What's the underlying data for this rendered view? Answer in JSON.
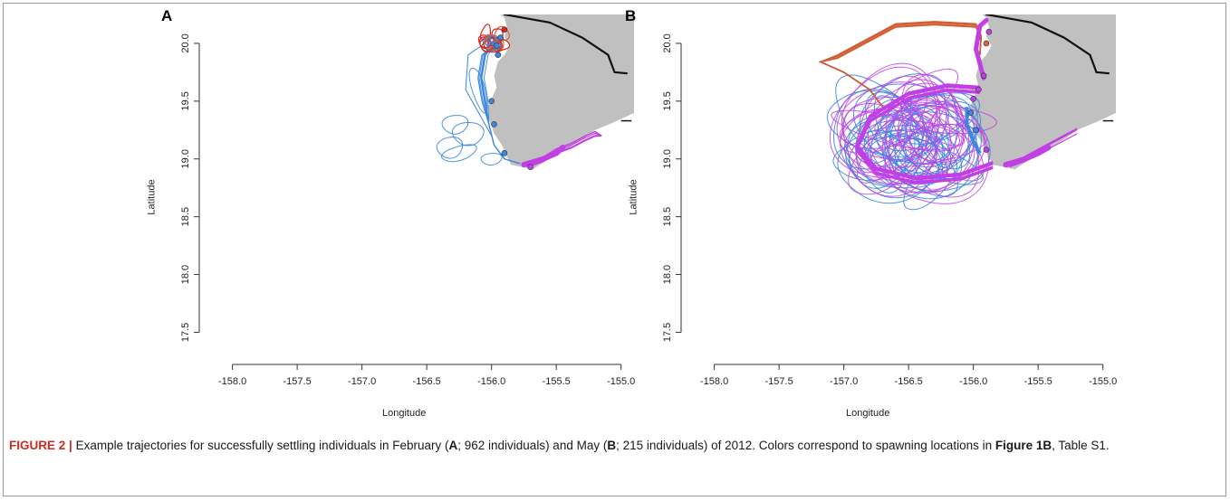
{
  "figure": {
    "id": "FIGURE 2",
    "separator": "|",
    "caption_parts": [
      {
        "t": "Example trajectories for successfully settling individuals in February (",
        "b": false
      },
      {
        "t": "A",
        "b": true
      },
      {
        "t": "; 962 individuals) and May (",
        "b": false
      },
      {
        "t": "B",
        "b": true
      },
      {
        "t": "; 215 individuals) of 2012. Colors correspond to spawning locations in ",
        "b": false
      },
      {
        "t": "Figure 1B",
        "b": true
      },
      {
        "t": ", Table S1.",
        "b": false
      }
    ]
  },
  "colors": {
    "land": "#c0c0c0",
    "coast": "#111111",
    "blue": "#3a86e0",
    "magenta": "#c23fe6",
    "orange": "#e0642a",
    "red": "#d8261e",
    "figure_id": "#d12a1e"
  },
  "chart_data": [
    {
      "panel": "A",
      "type": "scatter",
      "title": "",
      "xlabel": "Longitude",
      "ylabel": "Latitude",
      "xlim": [
        -158.2,
        -154.9
      ],
      "ylim": [
        17.3,
        20.25
      ],
      "xticks": [
        "-158.0",
        "-157.5",
        "-157.0",
        "-156.5",
        "-156.0",
        "-155.5",
        "-155.0"
      ],
      "yticks": [
        "17.5",
        "18.0",
        "18.5",
        "19.0",
        "19.5",
        "20.0"
      ],
      "month": "February",
      "individuals": 962,
      "series_colors": [
        "blue",
        "magenta",
        "orange",
        "red"
      ]
    },
    {
      "panel": "B",
      "type": "scatter",
      "title": "",
      "xlabel": "Longitude",
      "ylabel": "Latitude",
      "xlim": [
        -158.2,
        -154.9
      ],
      "ylim": [
        17.3,
        20.25
      ],
      "xticks": [
        "-158.0",
        "-157.5",
        "-157.0",
        "-156.5",
        "-156.0",
        "-155.5",
        "-155.0"
      ],
      "yticks": [
        "17.5",
        "18.0",
        "18.5",
        "19.0",
        "19.5",
        "20.0"
      ],
      "month": "May",
      "individuals": 215,
      "series_colors": [
        "blue",
        "magenta",
        "orange",
        "red"
      ]
    }
  ]
}
